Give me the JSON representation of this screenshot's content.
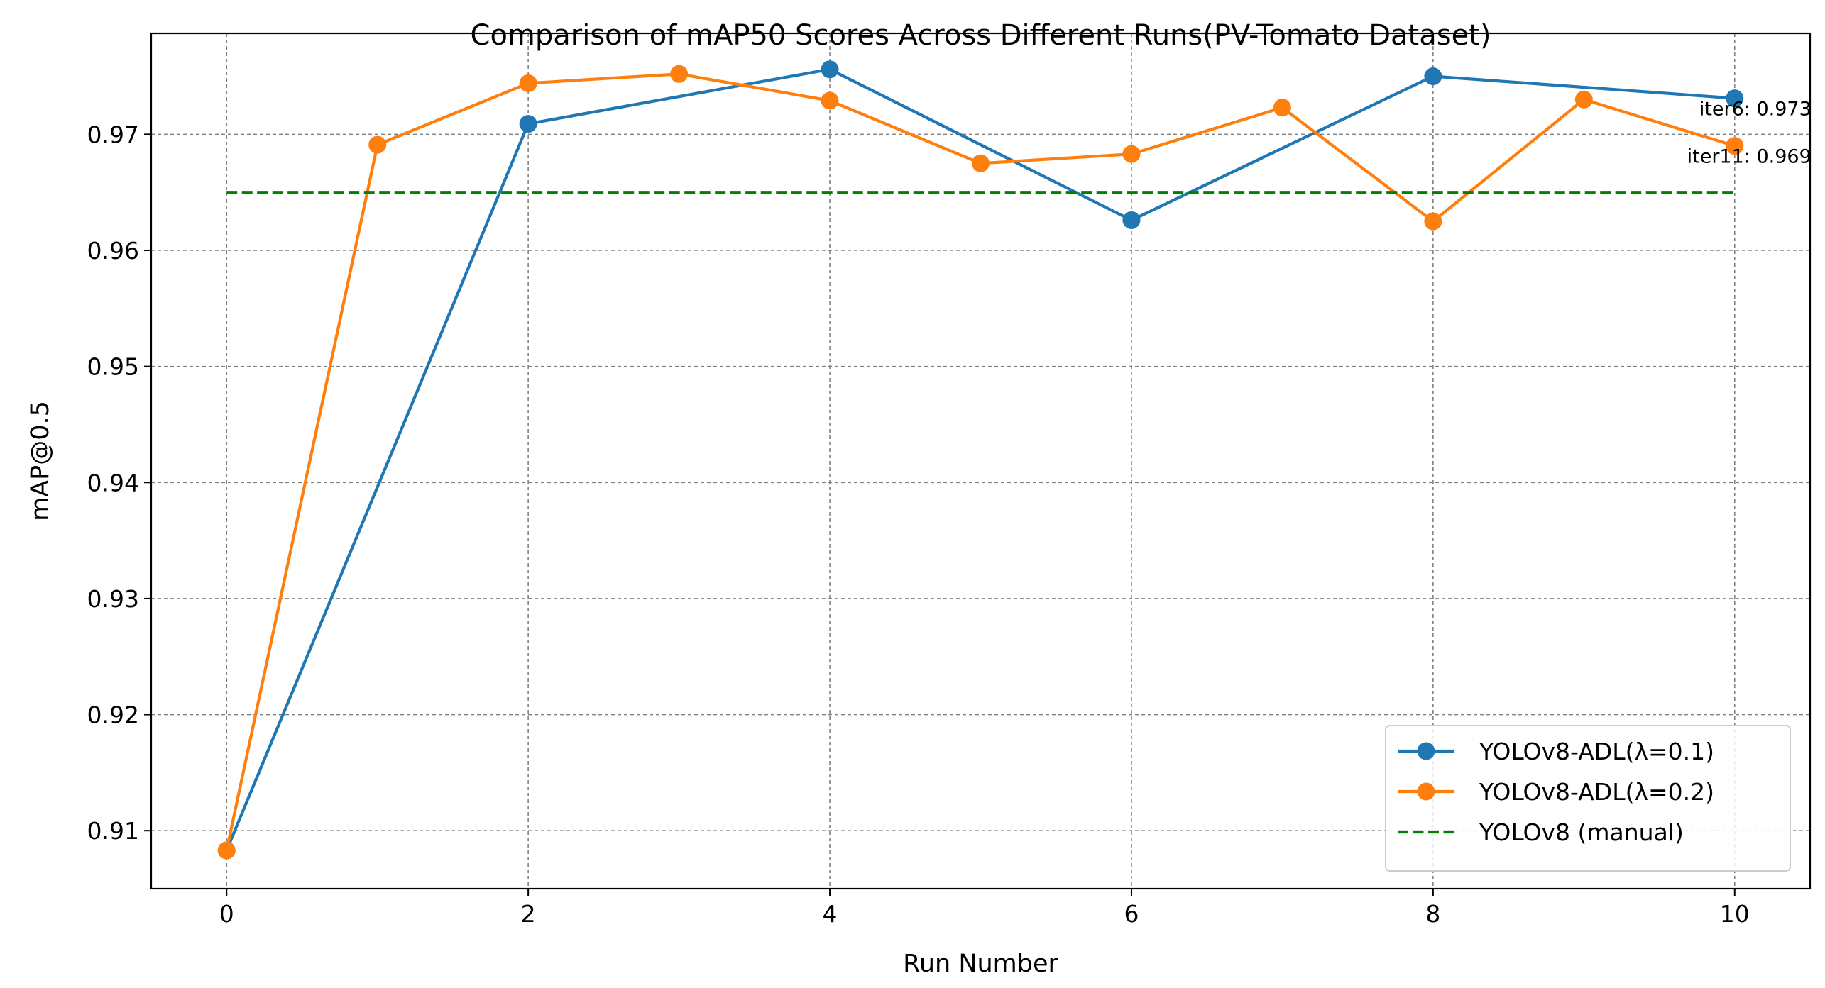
{
  "chart_data": {
    "type": "line",
    "title": "Comparison of mAP50 Scores Across Different Runs(PV-Tomato Dataset)",
    "xlabel": "Run Number",
    "ylabel": "mAP@0.5",
    "xlim": [
      -0.5,
      10.5
    ],
    "ylim": [
      0.905,
      0.9787
    ],
    "x_ticks": [
      0,
      2,
      4,
      6,
      8,
      10
    ],
    "y_ticks": [
      0.91,
      0.92,
      0.93,
      0.94,
      0.95,
      0.96,
      0.97
    ],
    "x_tick_labels": [
      "0",
      "2",
      "4",
      "6",
      "8",
      "10"
    ],
    "y_tick_labels": [
      "0.91",
      "0.92",
      "0.93",
      "0.94",
      "0.95",
      "0.96",
      "0.97"
    ],
    "grid": true,
    "legend_position": "lower-right",
    "series": [
      {
        "name": "YOLOv8-ADL(λ=0.1)",
        "color": "#1f77b4",
        "line_style": "solid",
        "marker": "circle",
        "x": [
          0,
          2,
          4,
          6,
          8,
          10
        ],
        "y": [
          0.9083,
          0.9709,
          0.9756,
          0.9626,
          0.975,
          0.9731
        ]
      },
      {
        "name": "YOLOv8-ADL(λ=0.2)",
        "color": "#ff7f0e",
        "line_style": "solid",
        "marker": "circle",
        "x": [
          0,
          1,
          2,
          3,
          4,
          5,
          6,
          7,
          8,
          9,
          10
        ],
        "y": [
          0.9083,
          0.9691,
          0.9744,
          0.9752,
          0.9729,
          0.9675,
          0.9683,
          0.9723,
          0.9625,
          0.973,
          0.969
        ]
      },
      {
        "name": "YOLOv8 (manual)",
        "color": "#008000",
        "line_style": "dashed",
        "marker": "none",
        "x": [
          0,
          10
        ],
        "y": [
          0.965,
          0.965
        ]
      }
    ],
    "annotations": [
      {
        "text": "iter6: 0.973",
        "x": 10,
        "y": 0.9731,
        "ha": "right",
        "va": "bottom"
      },
      {
        "text": "iter11: 0.969",
        "x": 10,
        "y": 0.969,
        "ha": "right",
        "va": "bottom"
      }
    ]
  }
}
